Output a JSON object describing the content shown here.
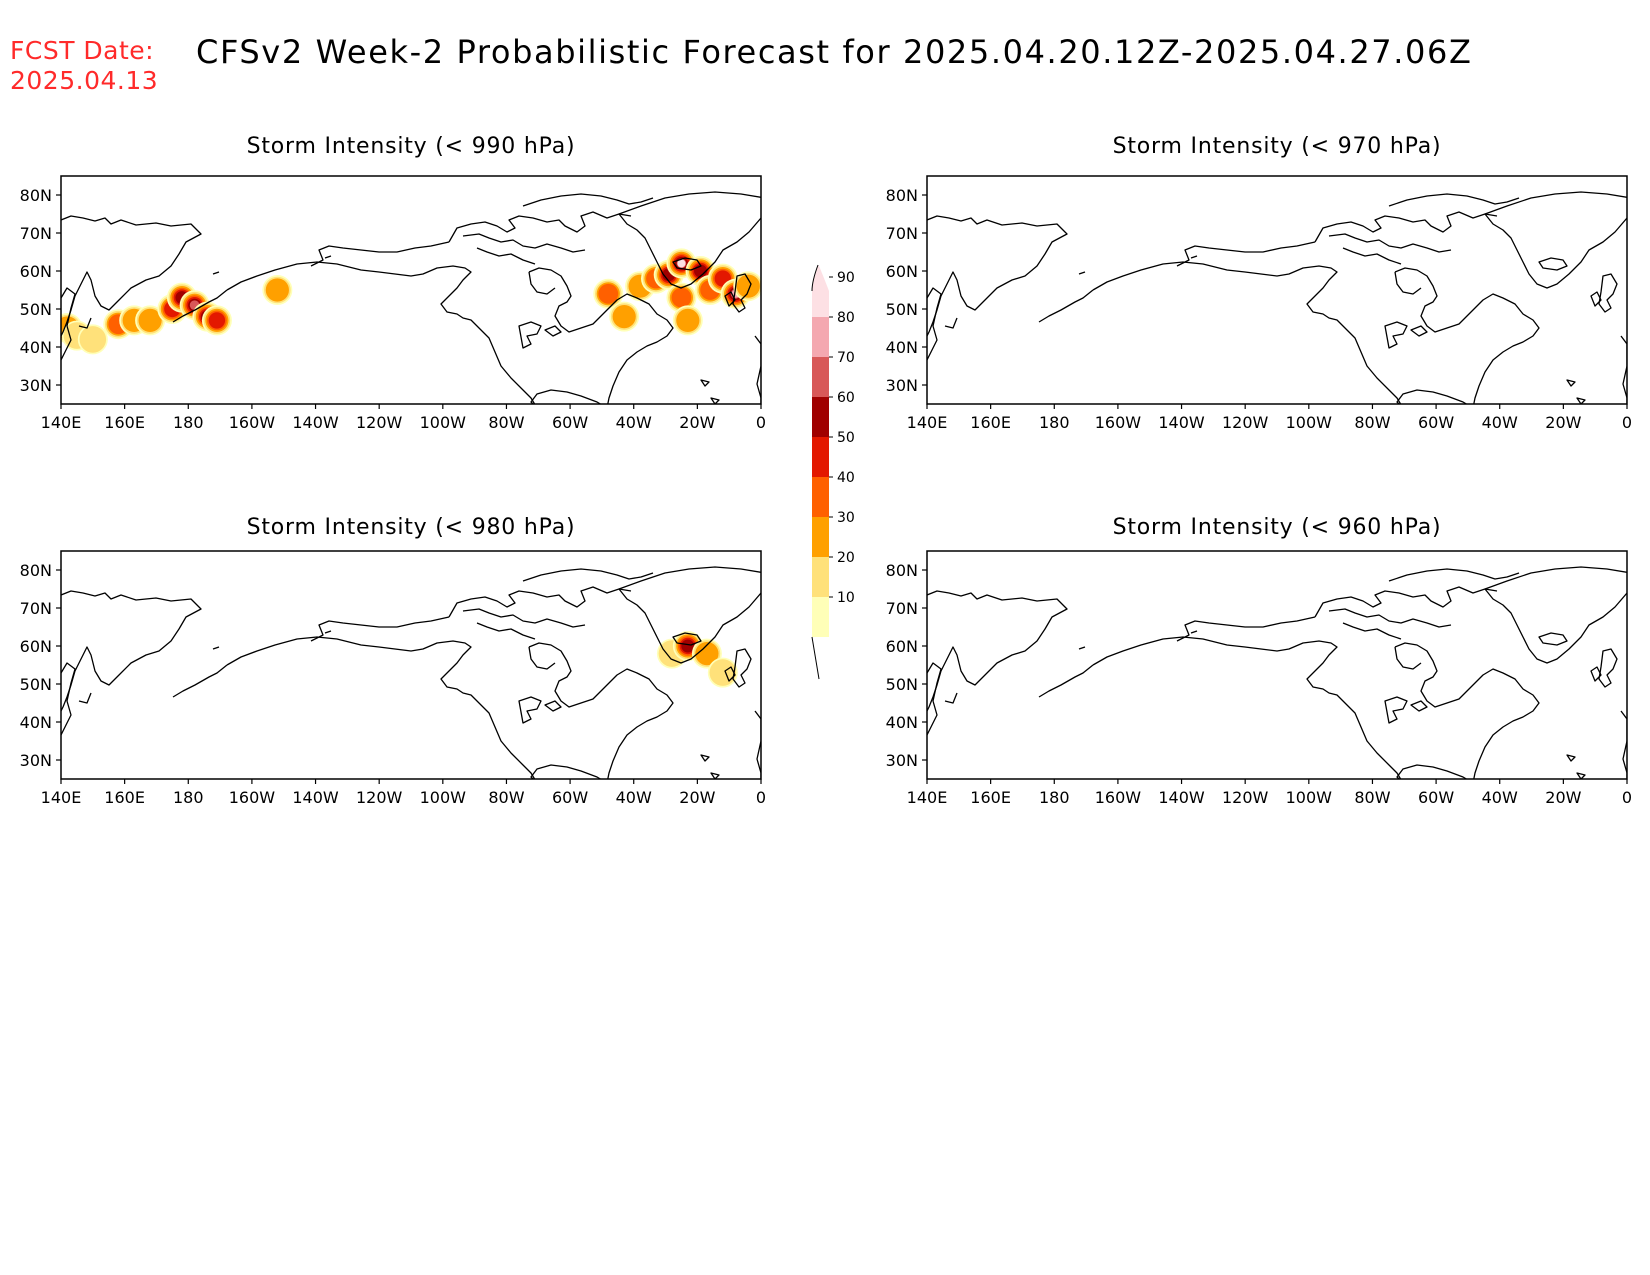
{
  "header": {
    "fcst_label": "FCST Date:",
    "fcst_date": "2025.04.13",
    "title": "CFSv2 Week-2 Probabilistic Forecast for 2025.04.20.12Z-2025.04.27.06Z"
  },
  "map_axes": {
    "lon_labels": [
      "140E",
      "160E",
      "180",
      "160W",
      "140W",
      "120W",
      "100W",
      "80W",
      "60W",
      "40W",
      "20W",
      "0"
    ],
    "lat_labels": [
      "80N",
      "70N",
      "60N",
      "50N",
      "40N",
      "30N"
    ],
    "lon_range_deg_east": [
      140,
      360
    ],
    "lat_range_deg": [
      25,
      85
    ]
  },
  "panels": [
    {
      "id": "p990",
      "title": "Storm Intensity (< 990 hPa)"
    },
    {
      "id": "p970",
      "title": "Storm Intensity (< 970 hPa)"
    },
    {
      "id": "p980",
      "title": "Storm Intensity (< 980 hPa)"
    },
    {
      "id": "p960",
      "title": "Storm Intensity (< 960 hPa)"
    }
  ],
  "colorbar": {
    "tick_labels": [
      "90",
      "80",
      "70",
      "60",
      "50",
      "40",
      "30",
      "20",
      "10"
    ],
    "colors": [
      "#ffffb8",
      "#ffe17a",
      "#ffa000",
      "#ff6000",
      "#e31800",
      "#a00000",
      "#d85858",
      "#f4a8b0",
      "#fde0e4"
    ]
  },
  "probability_blobs": {
    "p990": [
      {
        "lon": 142,
        "lat": 45,
        "level": 2
      },
      {
        "lon": 145,
        "lat": 43,
        "level": 1
      },
      {
        "lon": 150,
        "lat": 42,
        "level": 1
      },
      {
        "lon": 158,
        "lat": 46,
        "level": 3
      },
      {
        "lon": 163,
        "lat": 47,
        "level": 2
      },
      {
        "lon": 168,
        "lat": 47,
        "level": 2
      },
      {
        "lon": 175,
        "lat": 50,
        "level": 4
      },
      {
        "lon": 178,
        "lat": 53,
        "level": 5
      },
      {
        "lon": 182,
        "lat": 51,
        "level": 6
      },
      {
        "lon": 186,
        "lat": 48,
        "level": 5
      },
      {
        "lon": 189,
        "lat": 47,
        "level": 4
      },
      {
        "lon": 208,
        "lat": 55,
        "level": 2
      },
      {
        "lon": 312,
        "lat": 54,
        "level": 3
      },
      {
        "lon": 317,
        "lat": 48,
        "level": 2
      },
      {
        "lon": 322,
        "lat": 56,
        "level": 2
      },
      {
        "lon": 327,
        "lat": 58,
        "level": 3
      },
      {
        "lon": 331,
        "lat": 59,
        "level": 5
      },
      {
        "lon": 335,
        "lat": 62,
        "level": 8
      },
      {
        "lon": 335,
        "lat": 53,
        "level": 3
      },
      {
        "lon": 337,
        "lat": 47,
        "level": 2
      },
      {
        "lon": 341,
        "lat": 60,
        "level": 5
      },
      {
        "lon": 344,
        "lat": 55,
        "level": 3
      },
      {
        "lon": 348,
        "lat": 58,
        "level": 4
      },
      {
        "lon": 352,
        "lat": 54,
        "level": 7
      },
      {
        "lon": 356,
        "lat": 56,
        "level": 2
      }
    ],
    "p980": [
      {
        "lon": 332,
        "lat": 58,
        "level": 1
      },
      {
        "lon": 337,
        "lat": 60,
        "level": 5
      },
      {
        "lon": 343,
        "lat": 58,
        "level": 2
      },
      {
        "lon": 348,
        "lat": 53,
        "level": 1
      }
    ],
    "p970": [],
    "p960": []
  }
}
